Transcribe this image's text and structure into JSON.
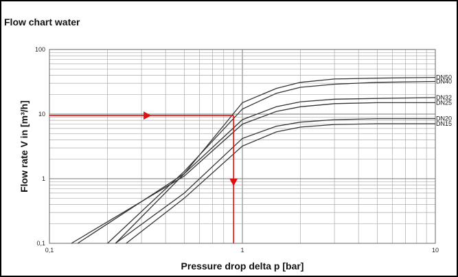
{
  "chart_data": {
    "type": "line",
    "title": "Flow chart water",
    "xlabel": "Pressure drop delta p [bar]",
    "ylabel": "Flow rate V in [m³/h]",
    "x_scale": "log",
    "y_scale": "log",
    "xlim": [
      0.1,
      10
    ],
    "ylim": [
      0.1,
      100
    ],
    "x_ticks": [
      "0,1",
      "1",
      "10"
    ],
    "y_ticks": [
      "0,1",
      "1",
      "10",
      "100"
    ],
    "grid": true,
    "series": [
      {
        "name": "DN50",
        "x": [
          0.22,
          0.5,
          1,
          1.5,
          2,
          3,
          5,
          10
        ],
        "y": [
          0.1,
          1.2,
          15,
          25,
          31,
          35,
          36,
          37
        ]
      },
      {
        "name": "DN40",
        "x": [
          0.2,
          0.5,
          1,
          1.5,
          2,
          3,
          5,
          10
        ],
        "y": [
          0.1,
          1.3,
          12,
          21,
          26,
          29,
          31,
          32
        ]
      },
      {
        "name": "DN32",
        "x": [
          0.14,
          0.5,
          1,
          1.5,
          2,
          3,
          5,
          10
        ],
        "y": [
          0.1,
          1.2,
          8.2,
          13,
          15.5,
          17,
          17.5,
          18
        ]
      },
      {
        "name": "DN25",
        "x": [
          0.13,
          0.5,
          1,
          1.5,
          2,
          3,
          5,
          10
        ],
        "y": [
          0.1,
          1.1,
          7,
          11,
          13,
          14.5,
          15,
          15
        ]
      },
      {
        "name": "DN20",
        "x": [
          0.22,
          0.5,
          1,
          1.5,
          2,
          3,
          5,
          10
        ],
        "y": [
          0.1,
          0.6,
          4.2,
          6.5,
          7.5,
          8.2,
          8.5,
          8.5
        ]
      },
      {
        "name": "DN15",
        "x": [
          0.25,
          0.5,
          1,
          1.5,
          2,
          3,
          5,
          10
        ],
        "y": [
          0.1,
          0.5,
          3.2,
          5.3,
          6.3,
          6.9,
          7.1,
          7.1
        ]
      }
    ],
    "annotation": {
      "color": "#e01010",
      "flow_value": 9.5,
      "pressure_value": 0.9
    }
  }
}
